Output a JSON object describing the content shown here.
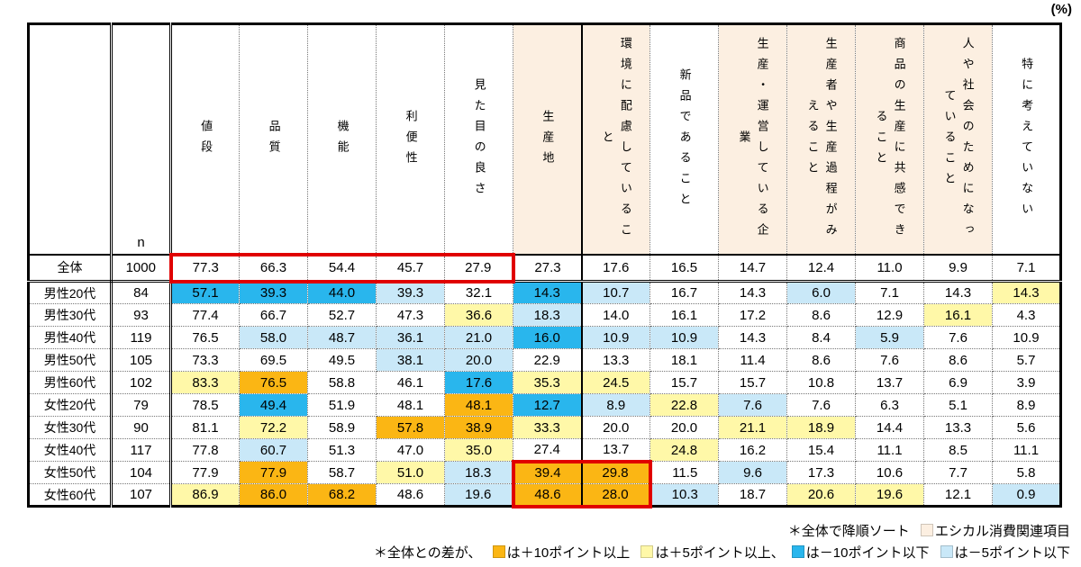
{
  "unit_label": "(%)",
  "colors": {
    "plus10_orange": "#FBB614",
    "plus5_yellow": "#FFF8A8",
    "minus10_blue": "#29B6ED",
    "minus5_lightblue": "#C9E8F8",
    "ethical_peach": "#FCEFE1",
    "red_box": "#E00000"
  },
  "chart_data": {
    "type": "table",
    "n_header": "n",
    "columns": [
      {
        "label": "値段",
        "ethical": false
      },
      {
        "label": "品質",
        "ethical": false
      },
      {
        "label": "機能",
        "ethical": false
      },
      {
        "label": "利便性",
        "ethical": false
      },
      {
        "label": "見た目の良さ",
        "ethical": false
      },
      {
        "label": "生産地",
        "ethical": true
      },
      {
        "label": "環境に配慮していること",
        "ethical": true
      },
      {
        "label": "新品であること",
        "ethical": false
      },
      {
        "label": "生産・運営している企業",
        "ethical": true
      },
      {
        "label": "生産者や生産過程がみえること",
        "ethical": true
      },
      {
        "label": "商品の生産に共感できること",
        "ethical": true
      },
      {
        "label": "人や社会のためになっていること",
        "ethical": true
      },
      {
        "label": "特に考えていない",
        "ethical": false
      }
    ],
    "rows": [
      {
        "label": "全体",
        "n": 1000,
        "values": [
          77.3,
          66.3,
          54.4,
          45.7,
          27.9,
          27.3,
          17.6,
          16.5,
          14.7,
          12.4,
          11.0,
          9.9,
          7.1
        ],
        "hl": [
          "",
          "",
          "",
          "",
          "",
          "",
          "",
          "",
          "",
          "",
          "",
          "",
          ""
        ]
      },
      {
        "label": "男性20代",
        "n": 84,
        "values": [
          57.1,
          39.3,
          44.0,
          39.3,
          32.1,
          14.3,
          10.7,
          16.7,
          14.3,
          6.0,
          7.1,
          14.3,
          14.3
        ],
        "hl": [
          "B",
          "B",
          "B",
          "L",
          "",
          "B",
          "L",
          "",
          "",
          "L",
          "",
          "",
          "Y"
        ]
      },
      {
        "label": "男性30代",
        "n": 93,
        "values": [
          77.4,
          66.7,
          52.7,
          47.3,
          36.6,
          18.3,
          14.0,
          16.1,
          17.2,
          8.6,
          12.9,
          16.1,
          4.3
        ],
        "hl": [
          "",
          "",
          "",
          "",
          "Y",
          "L",
          "",
          "",
          "",
          "",
          "",
          "Y",
          ""
        ]
      },
      {
        "label": "男性40代",
        "n": 119,
        "values": [
          76.5,
          58.0,
          48.7,
          36.1,
          21.0,
          16.0,
          10.9,
          10.9,
          14.3,
          8.4,
          5.9,
          7.6,
          10.9
        ],
        "hl": [
          "",
          "L",
          "L",
          "L",
          "L",
          "B",
          "L",
          "L",
          "",
          "",
          "L",
          "",
          ""
        ]
      },
      {
        "label": "男性50代",
        "n": 105,
        "values": [
          73.3,
          69.5,
          49.5,
          38.1,
          20.0,
          22.9,
          13.3,
          18.1,
          11.4,
          8.6,
          7.6,
          8.6,
          5.7
        ],
        "hl": [
          "",
          "",
          "",
          "L",
          "L",
          "",
          "",
          "",
          "",
          "",
          "",
          "",
          ""
        ]
      },
      {
        "label": "男性60代",
        "n": 102,
        "values": [
          83.3,
          76.5,
          58.8,
          46.1,
          17.6,
          35.3,
          24.5,
          15.7,
          15.7,
          10.8,
          13.7,
          6.9,
          3.9
        ],
        "hl": [
          "Y",
          "O",
          "",
          "",
          "B",
          "Y",
          "Y",
          "",
          "",
          "",
          "",
          "",
          ""
        ]
      },
      {
        "label": "女性20代",
        "n": 79,
        "values": [
          78.5,
          49.4,
          51.9,
          48.1,
          48.1,
          12.7,
          8.9,
          22.8,
          7.6,
          7.6,
          6.3,
          5.1,
          8.9
        ],
        "hl": [
          "",
          "B",
          "",
          "",
          "O",
          "B",
          "L",
          "Y",
          "L",
          "",
          "",
          "",
          ""
        ]
      },
      {
        "label": "女性30代",
        "n": 90,
        "values": [
          81.1,
          72.2,
          58.9,
          57.8,
          38.9,
          33.3,
          20.0,
          20.0,
          21.1,
          18.9,
          14.4,
          13.3,
          5.6
        ],
        "hl": [
          "",
          "Y",
          "",
          "O",
          "O",
          "Y",
          "",
          "",
          "Y",
          "Y",
          "",
          "",
          ""
        ]
      },
      {
        "label": "女性40代",
        "n": 117,
        "values": [
          77.8,
          60.7,
          51.3,
          47.0,
          35.0,
          27.4,
          13.7,
          24.8,
          16.2,
          15.4,
          11.1,
          8.5,
          11.1
        ],
        "hl": [
          "",
          "L",
          "",
          "",
          "Y",
          "",
          "",
          "Y",
          "",
          "",
          "",
          "",
          ""
        ]
      },
      {
        "label": "女性50代",
        "n": 104,
        "values": [
          77.9,
          77.9,
          58.7,
          51.0,
          18.3,
          39.4,
          29.8,
          11.5,
          9.6,
          17.3,
          10.6,
          7.7,
          5.8
        ],
        "hl": [
          "",
          "O",
          "",
          "Y",
          "L",
          "O",
          "O",
          "",
          "L",
          "",
          "",
          "",
          ""
        ]
      },
      {
        "label": "女性60代",
        "n": 107,
        "values": [
          86.9,
          86.0,
          68.2,
          48.6,
          19.6,
          48.6,
          28.0,
          10.3,
          18.7,
          20.6,
          19.6,
          12.1,
          0.9
        ],
        "hl": [
          "Y",
          "O",
          "O",
          "",
          "L",
          "O",
          "O",
          "L",
          "",
          "Y",
          "Y",
          "",
          "L"
        ]
      }
    ],
    "red_boxes": [
      {
        "row_start": 0,
        "row_end": 0,
        "col_start": 0,
        "col_end": 4
      },
      {
        "row_start": 9,
        "row_end": 10,
        "col_start": 5,
        "col_end": 6
      }
    ]
  },
  "footnotes": {
    "sort_note": "＊全体で降順ソート",
    "ethical_note": "エシカル消費関連項目",
    "diff_prefix": "＊全体との差が、",
    "legend": [
      {
        "swatch": "plus10",
        "text": "は＋10ポイント以上 "
      },
      {
        "swatch": "plus5",
        "text": "は＋5ポイント以上、"
      },
      {
        "swatch": "minus10",
        "text": "は－10ポイント以下 "
      },
      {
        "swatch": "minus5",
        "text": "は－5ポイント以下"
      }
    ]
  }
}
